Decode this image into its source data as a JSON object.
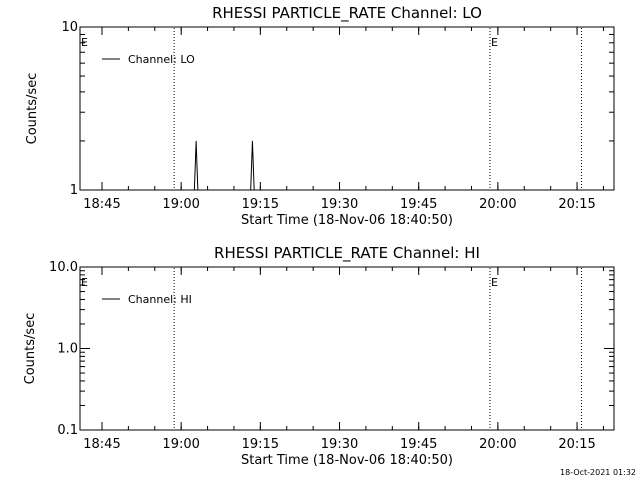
{
  "stamp": "18-Oct-2021 01:32",
  "chart_data": [
    {
      "type": "line",
      "title": "RHESSI PARTICLE_RATE Channel: LO",
      "xlabel": "Start Time (18-Nov-06 18:40:50)",
      "ylabel": "Counts/sec",
      "yscale": "log",
      "ylim": [
        1,
        10
      ],
      "yticks": [
        "1",
        "10"
      ],
      "xlim": [
        "18:40:50",
        "20:22:00"
      ],
      "xticks": [
        "18:45",
        "19:00",
        "19:15",
        "19:30",
        "19:45",
        "20:00",
        "20:15"
      ],
      "grid": false,
      "legend_position": "top-left",
      "series": [
        {
          "name": "Channel: LO",
          "x": [
            "18:40:50",
            "19:02:30",
            "19:02:40",
            "19:02:50",
            "19:03:00",
            "19:03:10",
            "19:13:10",
            "19:13:20",
            "19:13:30",
            "19:13:40",
            "19:13:50",
            "20:22:00"
          ],
          "y": [
            1,
            1,
            1.4,
            2,
            1.4,
            1,
            1,
            1.4,
            2,
            1.4,
            1,
            1
          ]
        }
      ],
      "event_lines": [
        "18:58:40",
        "19:58:30",
        "20:15:50"
      ],
      "event_flags": [
        {
          "time": "18:40:50",
          "text": "E"
        },
        {
          "time": "19:58:30",
          "text": "E"
        }
      ]
    },
    {
      "type": "line",
      "title": "RHESSI PARTICLE_RATE Channel: HI",
      "xlabel": "Start Time (18-Nov-06 18:40:50)",
      "ylabel": "Counts/sec",
      "yscale": "log",
      "ylim": [
        0.1,
        10
      ],
      "yticks": [
        "0.1",
        "1.0",
        "10.0"
      ],
      "xlim": [
        "18:40:50",
        "20:22:00"
      ],
      "xticks": [
        "18:45",
        "19:00",
        "19:15",
        "19:30",
        "19:45",
        "20:00",
        "20:15"
      ],
      "grid": false,
      "legend_position": "top-left",
      "series": [
        {
          "name": "Channel: HI",
          "x": [],
          "y": []
        }
      ],
      "event_lines": [
        "18:58:40",
        "19:58:30",
        "20:15:50"
      ],
      "event_flags": [
        {
          "time": "18:40:50",
          "text": "E"
        },
        {
          "time": "19:58:30",
          "text": "E"
        }
      ]
    }
  ]
}
